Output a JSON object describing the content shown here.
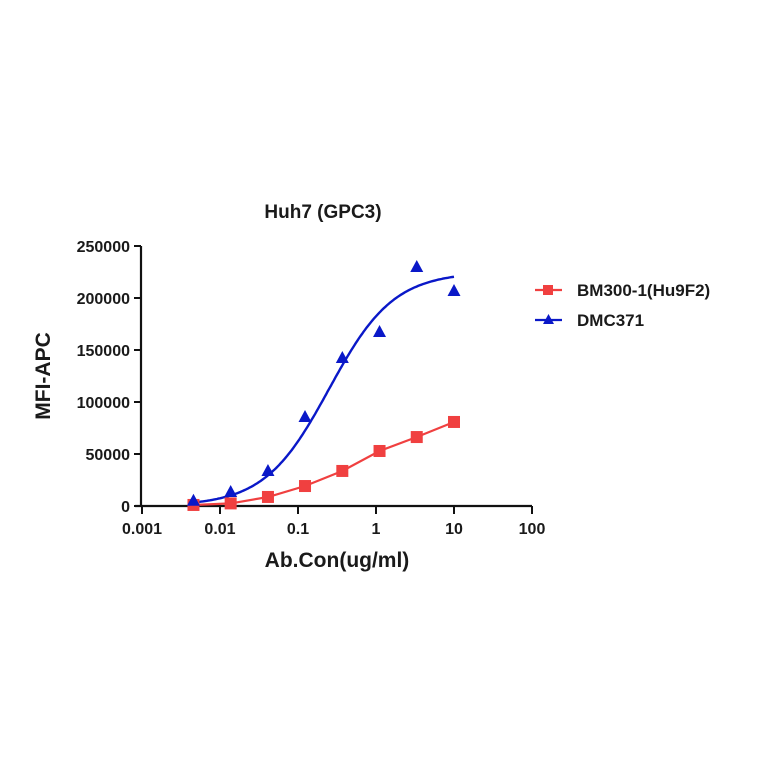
{
  "chart_data": {
    "type": "scatter",
    "title": "Huh7 (GPC3)",
    "xlabel": "Ab.Con(ug/ml)",
    "ylabel": "MFI-APC",
    "xscale": "log",
    "xlim": [
      0.001,
      100
    ],
    "ylim": [
      0,
      250000
    ],
    "x_ticks": [
      "0.001",
      "0.01",
      "0.1",
      "1",
      "10",
      "100"
    ],
    "y_ticks": [
      "0",
      "50000",
      "100000",
      "150000",
      "200000",
      "250000"
    ],
    "grid": false,
    "legend_position": "right",
    "x": [
      0.00457,
      0.0137,
      0.0412,
      0.123,
      0.37,
      1.11,
      3.33,
      10
    ],
    "series": [
      {
        "name": "BM300-1(Hu9F2)",
        "color": "#f04040",
        "marker": "square",
        "fit": "connected",
        "values": [
          1000,
          2500,
          8700,
          19200,
          33700,
          52900,
          66300,
          80800
        ]
      },
      {
        "name": "DMC371",
        "color": "#0a18c8",
        "marker": "triangle",
        "fit": "sigmoid",
        "values": [
          5000,
          13500,
          33700,
          85600,
          142300,
          167300,
          229800,
          206700
        ]
      }
    ]
  }
}
